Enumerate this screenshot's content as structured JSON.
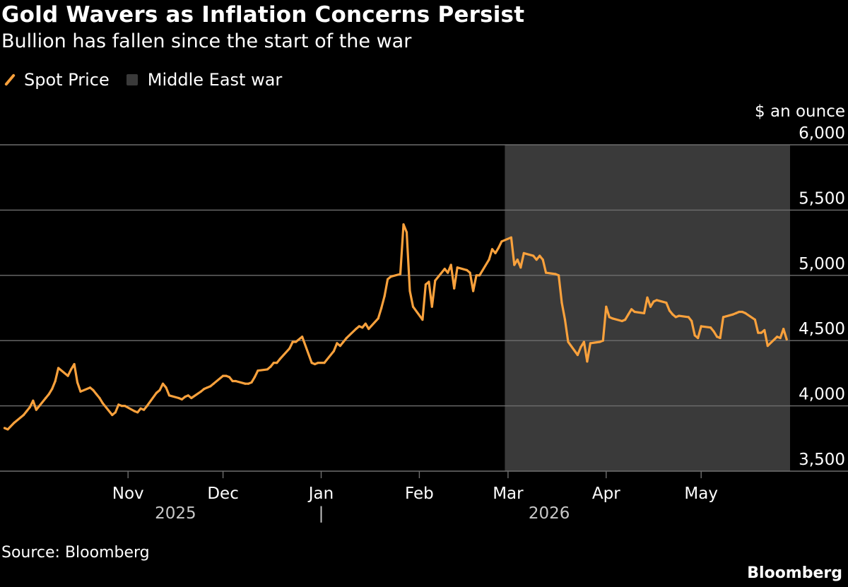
{
  "title": "Gold Wavers as Inflation Concerns Persist",
  "subtitle": "Bullion has fallen since the start of the war",
  "legend": {
    "spot_label": "Spot Price",
    "war_label": "Middle East war"
  },
  "source": "Source: Bloomberg",
  "brand": "Bloomberg",
  "colors": {
    "background": "#000000",
    "line": "#f9a13c",
    "war_band": "#3a3a3a",
    "grid": "#6e6e6e",
    "text": "#ffffff",
    "muted_text": "#c8c8c8"
  },
  "chart_data": {
    "type": "line",
    "title": "Gold Wavers as Inflation Concerns Persist",
    "subtitle": "Bullion has fallen since the start of the war",
    "ylabel": "$ an ounce",
    "ylim": [
      3500,
      6000
    ],
    "y_ticks": [
      3500,
      4000,
      4500,
      5000,
      5500,
      6000
    ],
    "y_tick_labels": [
      "3,500",
      "4,000",
      "4,500",
      "5,000",
      "5,500",
      "6,000"
    ],
    "xlim": [
      "2025-09-22",
      "2026-06-05"
    ],
    "x_ticks": [
      {
        "date": "2025-11-01",
        "label": "Nov"
      },
      {
        "date": "2025-12-01",
        "label": "Dec"
      },
      {
        "date": "2026-01-01",
        "label": "Jan"
      },
      {
        "date": "2026-02-01",
        "label": "Feb"
      },
      {
        "date": "2026-03-01",
        "label": "Mar"
      },
      {
        "date": "2026-04-01",
        "label": "Apr"
      },
      {
        "date": "2026-05-01",
        "label": "May"
      }
    ],
    "year_labels": [
      {
        "date": "2025-11-16",
        "label": "2025"
      },
      {
        "date": "2026-03-14",
        "label": "2026"
      }
    ],
    "year_divider_date": "2026-01-01",
    "year_divider_label": "|",
    "grid": true,
    "legend_position": "top-left",
    "shaded_region": {
      "name": "Middle East war",
      "start": "2026-02-28",
      "end": "2026-06-05"
    },
    "series": [
      {
        "name": "Spot Price",
        "x": [
          "2025-09-23",
          "2025-09-24",
          "2025-09-26",
          "2025-09-29",
          "2025-09-30",
          "2025-10-01",
          "2025-10-02",
          "2025-10-03",
          "2025-10-06",
          "2025-10-07",
          "2025-10-08",
          "2025-10-09",
          "2025-10-10",
          "2025-10-13",
          "2025-10-14",
          "2025-10-15",
          "2025-10-16",
          "2025-10-17",
          "2025-10-20",
          "2025-10-21",
          "2025-10-22",
          "2025-10-23",
          "2025-10-24",
          "2025-10-27",
          "2025-10-28",
          "2025-10-29",
          "2025-10-30",
          "2025-10-31",
          "2025-11-03",
          "2025-11-04",
          "2025-11-05",
          "2025-11-06",
          "2025-11-07",
          "2025-11-10",
          "2025-11-11",
          "2025-11-12",
          "2025-11-13",
          "2025-11-14",
          "2025-11-17",
          "2025-11-18",
          "2025-11-19",
          "2025-11-20",
          "2025-11-21",
          "2025-11-24",
          "2025-11-25",
          "2025-11-26",
          "2025-11-27",
          "2025-11-28",
          "2025-12-01",
          "2025-12-02",
          "2025-12-03",
          "2025-12-04",
          "2025-12-05",
          "2025-12-08",
          "2025-12-09",
          "2025-12-10",
          "2025-12-11",
          "2025-12-12",
          "2025-12-15",
          "2025-12-16",
          "2025-12-17",
          "2025-12-18",
          "2025-12-19",
          "2025-12-22",
          "2025-12-23",
          "2025-12-24",
          "2025-12-26",
          "2025-12-29",
          "2025-12-30",
          "2025-12-31",
          "2026-01-02",
          "2026-01-05",
          "2026-01-06",
          "2026-01-07",
          "2026-01-08",
          "2026-01-09",
          "2026-01-12",
          "2026-01-13",
          "2026-01-14",
          "2026-01-15",
          "2026-01-16",
          "2026-01-19",
          "2026-01-20",
          "2026-01-21",
          "2026-01-22",
          "2026-01-23",
          "2026-01-26",
          "2026-01-27",
          "2026-01-28",
          "2026-01-29",
          "2026-01-30",
          "2026-02-02",
          "2026-02-03",
          "2026-02-04",
          "2026-02-05",
          "2026-02-06",
          "2026-02-09",
          "2026-02-10",
          "2026-02-11",
          "2026-02-12",
          "2026-02-13",
          "2026-02-16",
          "2026-02-17",
          "2026-02-18",
          "2026-02-19",
          "2026-02-20",
          "2026-02-23",
          "2026-02-24",
          "2026-02-25",
          "2026-02-26",
          "2026-02-27",
          "2026-03-02",
          "2026-03-03",
          "2026-03-04",
          "2026-03-05",
          "2026-03-06",
          "2026-03-09",
          "2026-03-10",
          "2026-03-11",
          "2026-03-12",
          "2026-03-13",
          "2026-03-16",
          "2026-03-17",
          "2026-03-18",
          "2026-03-19",
          "2026-03-20",
          "2026-03-23",
          "2026-03-24",
          "2026-03-25",
          "2026-03-26",
          "2026-03-27",
          "2026-03-30",
          "2026-03-31",
          "2026-04-01",
          "2026-04-02",
          "2026-04-03",
          "2026-04-06",
          "2026-04-07",
          "2026-04-08",
          "2026-04-09",
          "2026-04-10",
          "2026-04-13",
          "2026-04-14",
          "2026-04-15",
          "2026-04-16",
          "2026-04-17",
          "2026-04-20",
          "2026-04-21",
          "2026-04-22",
          "2026-04-23",
          "2026-04-24",
          "2026-04-27",
          "2026-04-28",
          "2026-04-29",
          "2026-04-30",
          "2026-05-01",
          "2026-05-04",
          "2026-05-05",
          "2026-05-06",
          "2026-05-07",
          "2026-05-08",
          "2026-05-11",
          "2026-05-12",
          "2026-05-13",
          "2026-05-14",
          "2026-05-15",
          "2026-05-18",
          "2026-05-19",
          "2026-05-20",
          "2026-05-21",
          "2026-05-22",
          "2026-05-25",
          "2026-05-26",
          "2026-05-27",
          "2026-05-28"
        ],
        "values": [
          3830,
          3820,
          3870,
          3930,
          3960,
          3990,
          4040,
          3970,
          4060,
          4090,
          4130,
          4190,
          4290,
          4230,
          4280,
          4320,
          4180,
          4110,
          4140,
          4120,
          4090,
          4060,
          4020,
          3930,
          3950,
          4010,
          4000,
          4000,
          3960,
          3950,
          3980,
          3970,
          4000,
          4100,
          4120,
          4170,
          4140,
          4080,
          4060,
          4050,
          4070,
          4080,
          4060,
          4110,
          4130,
          4140,
          4150,
          4170,
          4230,
          4230,
          4220,
          4190,
          4190,
          4170,
          4170,
          4180,
          4220,
          4270,
          4280,
          4300,
          4330,
          4330,
          4360,
          4440,
          4490,
          4490,
          4530,
          4330,
          4320,
          4330,
          4330,
          4420,
          4480,
          4460,
          4490,
          4520,
          4590,
          4610,
          4600,
          4630,
          4590,
          4670,
          4750,
          4840,
          4970,
          4990,
          5010,
          5390,
          5330,
          4880,
          4760,
          4660,
          4930,
          4950,
          4760,
          4960,
          5050,
          5020,
          5080,
          4900,
          5060,
          5040,
          5020,
          4880,
          5000,
          5000,
          5120,
          5200,
          5170,
          5210,
          5260,
          5290,
          5080,
          5120,
          5060,
          5170,
          5150,
          5120,
          5150,
          5120,
          5020,
          5010,
          5000,
          4790,
          4660,
          4490,
          4390,
          4450,
          4490,
          4340,
          4480,
          4490,
          4500,
          4760,
          4680,
          4670,
          4650,
          4660,
          4700,
          4740,
          4720,
          4710,
          4830,
          4760,
          4800,
          4810,
          4790,
          4730,
          4700,
          4680,
          4690,
          4680,
          4650,
          4540,
          4520,
          4610,
          4600,
          4570,
          4530,
          4520,
          4680,
          4700,
          4710,
          4720,
          4720,
          4710,
          4660,
          4560,
          4560,
          4580,
          4460,
          4530,
          4520,
          4590,
          4510
        ]
      }
    ]
  }
}
